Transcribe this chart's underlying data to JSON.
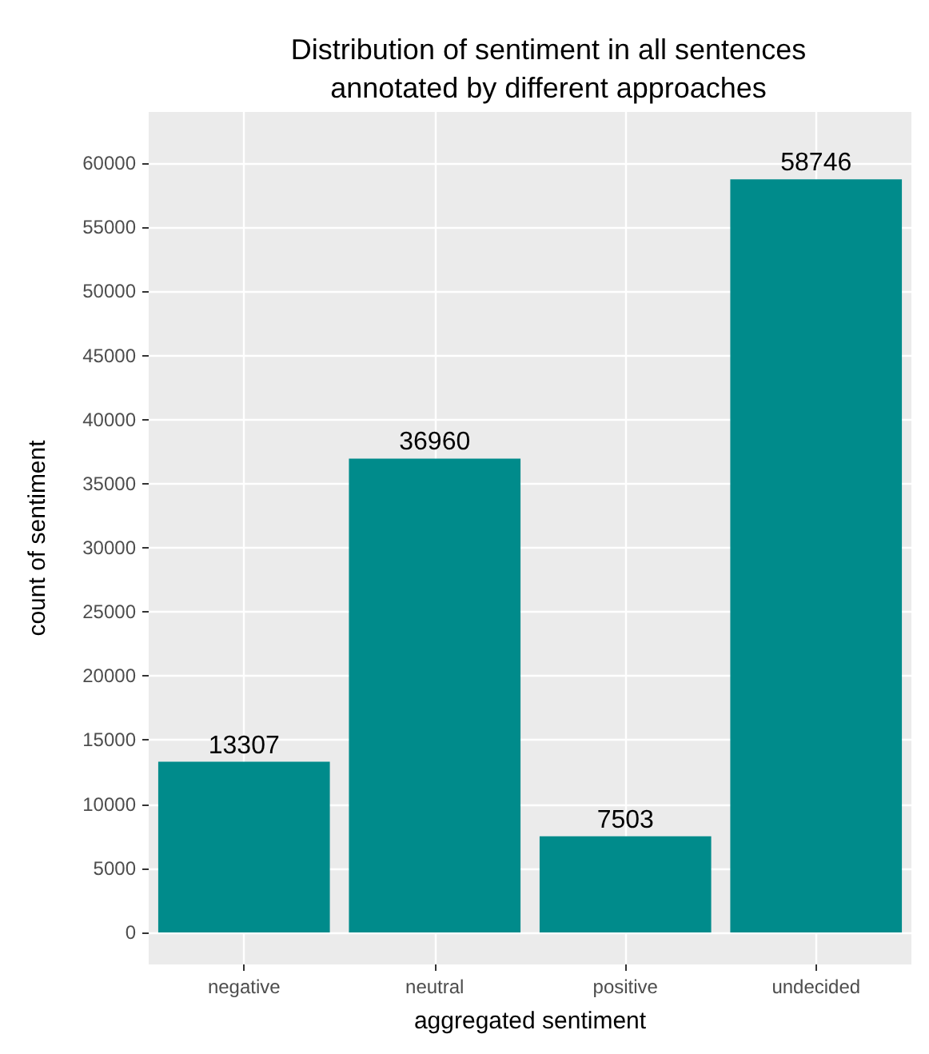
{
  "chart_data": {
    "type": "bar",
    "title": "Distribution of sentiment in all sentences\nannotated by different approaches",
    "xlabel": "aggregated sentiment",
    "ylabel": "count of sentiment",
    "categories": [
      "negative",
      "neutral",
      "positive",
      "undecided"
    ],
    "values": [
      13307,
      36960,
      7503,
      58746
    ],
    "color": "#008b8b",
    "ylim": [
      -2500,
      64000
    ],
    "yticks": [
      0,
      5000,
      10000,
      15000,
      20000,
      25000,
      30000,
      35000,
      40000,
      45000,
      50000,
      55000,
      60000
    ],
    "grid": true,
    "data_labels": true
  }
}
